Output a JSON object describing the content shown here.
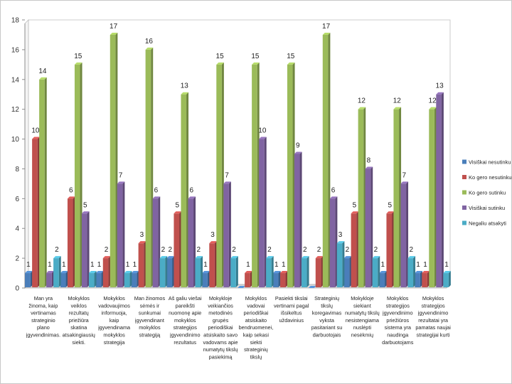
{
  "chart_data": {
    "type": "bar",
    "title": "",
    "xlabel": "",
    "ylabel": "",
    "ylim": [
      0,
      18
    ],
    "yticks": [
      0,
      2,
      4,
      6,
      8,
      10,
      12,
      14,
      16,
      18
    ],
    "grid": false,
    "legend_position": "right",
    "categories": [
      [
        "Man yra",
        "žinoma, kaip",
        "vertinamas",
        "strateginio",
        "plano",
        "įgyvendinimas."
      ],
      [
        "Mokyklos",
        "veiklos",
        "rezultatų",
        "priežiūra",
        "skatina",
        "atsakingiausių",
        "siekti."
      ],
      [
        "Mokyklos",
        "vadovaujimos",
        "informuoja,",
        "kaip",
        "įgyvendinama",
        "mokyklos",
        "strategija"
      ],
      [
        "Man žinomos",
        "sėmės ir",
        "sunkumai",
        "įgyvendinant",
        "mokyklos",
        "strategiją"
      ],
      [
        "Aš galiu viešai",
        "pareikšti",
        "nuomonę apie",
        "mokyklos",
        "strategijos",
        "įgyvendinimo",
        "rezultatus"
      ],
      [
        "Mokykloje",
        "veikiančios",
        "metodinės",
        "grupės",
        "periodiškai",
        "atsiskaito savo",
        "vadovams apie",
        "numatytų tikslų",
        "pasiekimą"
      ],
      [
        "Mokyklos",
        "vadovai",
        "periodiškai",
        "atsiskaito",
        "bendruomenei,",
        "kaip sekasi",
        "siekti",
        "strateginių",
        "tikslų"
      ],
      [
        "Pasiekti tikslai",
        "vertinami pagal",
        "išsikeltus",
        "uždavinius"
      ],
      [
        "Strateginių",
        "tikslų",
        "koregavimas",
        "vyksta",
        "pasitariant su",
        "darbuotojais"
      ],
      [
        "Mokykloje",
        "siekiant",
        "numatytų tikslų",
        "nesistengiama",
        "nuslėpti",
        "nesėkmių"
      ],
      [
        "Mokyklos",
        "strategijos",
        "įgyvendinimo",
        "priežiūros",
        "sistema yra",
        "naudinga",
        "darbuotojams"
      ],
      [
        "Mokyklos",
        "strategijos",
        "įgyvendinimo",
        "rezultatai yra",
        "pamatas naujai",
        "strategijai kurti"
      ]
    ],
    "series": [
      {
        "name": "Visiškai nesutinku",
        "color": "#4a7eba",
        "values": [
          1,
          1,
          1,
          1,
          2,
          1,
          0,
          1,
          0,
          2,
          1,
          1
        ]
      },
      {
        "name": "Ko gero nesutinku",
        "color": "#c0504d",
        "values": [
          10,
          6,
          2,
          3,
          5,
          3,
          1,
          1,
          2,
          5,
          5,
          1
        ]
      },
      {
        "name": "Ko gero sutinku",
        "color": "#9bbb59",
        "values": [
          14,
          15,
          17,
          16,
          13,
          15,
          15,
          15,
          17,
          12,
          12,
          12
        ]
      },
      {
        "name": "Visiškai sutinku",
        "color": "#8064a2",
        "values": [
          1,
          5,
          7,
          6,
          6,
          7,
          10,
          9,
          6,
          8,
          7,
          13
        ]
      },
      {
        "name": "Negaliu atsakyti",
        "color": "#4bacc6",
        "values": [
          2,
          1,
          1,
          2,
          2,
          2,
          2,
          2,
          3,
          2,
          2,
          1
        ]
      }
    ],
    "data_labels": [
      [
        "1",
        "1",
        "1",
        "1",
        "2",
        "1",
        "",
        "1",
        "",
        "2",
        "1",
        "1"
      ],
      [
        "10",
        "6",
        "2",
        "3",
        "5",
        "3",
        "1",
        "1",
        "2",
        "5",
        "5",
        "1"
      ],
      [
        "14",
        "15",
        "17",
        "16",
        "13",
        "15",
        "15",
        "15",
        "17",
        "12",
        "12",
        "12"
      ],
      [
        "1",
        "5",
        "7",
        "6",
        "6",
        "7",
        "10",
        "9",
        "6",
        "8",
        "7",
        "13"
      ],
      [
        "2",
        "1",
        "1",
        "2",
        "2",
        "2",
        "2",
        "2",
        "3",
        "2",
        "2",
        "1"
      ]
    ]
  }
}
